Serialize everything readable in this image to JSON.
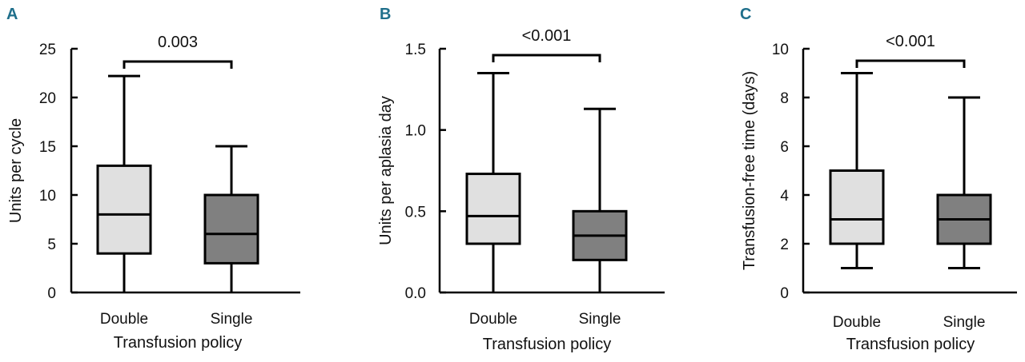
{
  "figure": {
    "colors": {
      "double_box": "#e0e0e0",
      "single_box": "#808080",
      "stroke": "#000000",
      "panel_letter": "#1f6f8b"
    }
  },
  "chart_data": [
    {
      "type": "box",
      "panel": "A",
      "xlabel": "Transfusion policy",
      "ylabel": "Units per cycle",
      "ylim": [
        0,
        25
      ],
      "yticks": [
        "0",
        "5",
        "10",
        "15",
        "20",
        "25"
      ],
      "ytick_values": [
        0,
        5,
        10,
        15,
        20,
        25
      ],
      "categories": [
        "Double",
        "Single"
      ],
      "boxes": [
        {
          "category": "Double",
          "min": 0,
          "q1": 4,
          "median": 8,
          "q3": 13,
          "max": 22.2
        },
        {
          "category": "Single",
          "min": 0,
          "q1": 3,
          "median": 6,
          "q3": 10,
          "max": 15
        }
      ],
      "significance": "0.003"
    },
    {
      "type": "box",
      "panel": "B",
      "xlabel": "Transfusion policy",
      "ylabel": "Units per aplasia day",
      "ylim": [
        0,
        1.5
      ],
      "yticks": [
        "0.0",
        "0.5",
        "1.0",
        "1.5"
      ],
      "ytick_values": [
        0,
        0.5,
        1.0,
        1.5
      ],
      "categories": [
        "Double",
        "Single"
      ],
      "boxes": [
        {
          "category": "Double",
          "min": 0,
          "q1": 0.3,
          "median": 0.47,
          "q3": 0.73,
          "max": 1.35
        },
        {
          "category": "Single",
          "min": 0,
          "q1": 0.2,
          "median": 0.35,
          "q3": 0.5,
          "max": 1.13
        }
      ],
      "significance": "<0.001"
    },
    {
      "type": "box",
      "panel": "C",
      "xlabel": "Transfusion policy",
      "ylabel": "Transfusion-free time (days)",
      "ylim": [
        0,
        10
      ],
      "yticks": [
        "0",
        "2",
        "4",
        "6",
        "8",
        "10"
      ],
      "ytick_values": [
        0,
        2,
        4,
        6,
        8,
        10
      ],
      "categories": [
        "Double",
        "Single"
      ],
      "boxes": [
        {
          "category": "Double",
          "min": 1,
          "q1": 2,
          "median": 3,
          "q3": 5,
          "max": 9
        },
        {
          "category": "Single",
          "min": 1,
          "q1": 2,
          "median": 3,
          "q3": 4,
          "max": 8
        }
      ],
      "significance": "<0.001"
    }
  ]
}
